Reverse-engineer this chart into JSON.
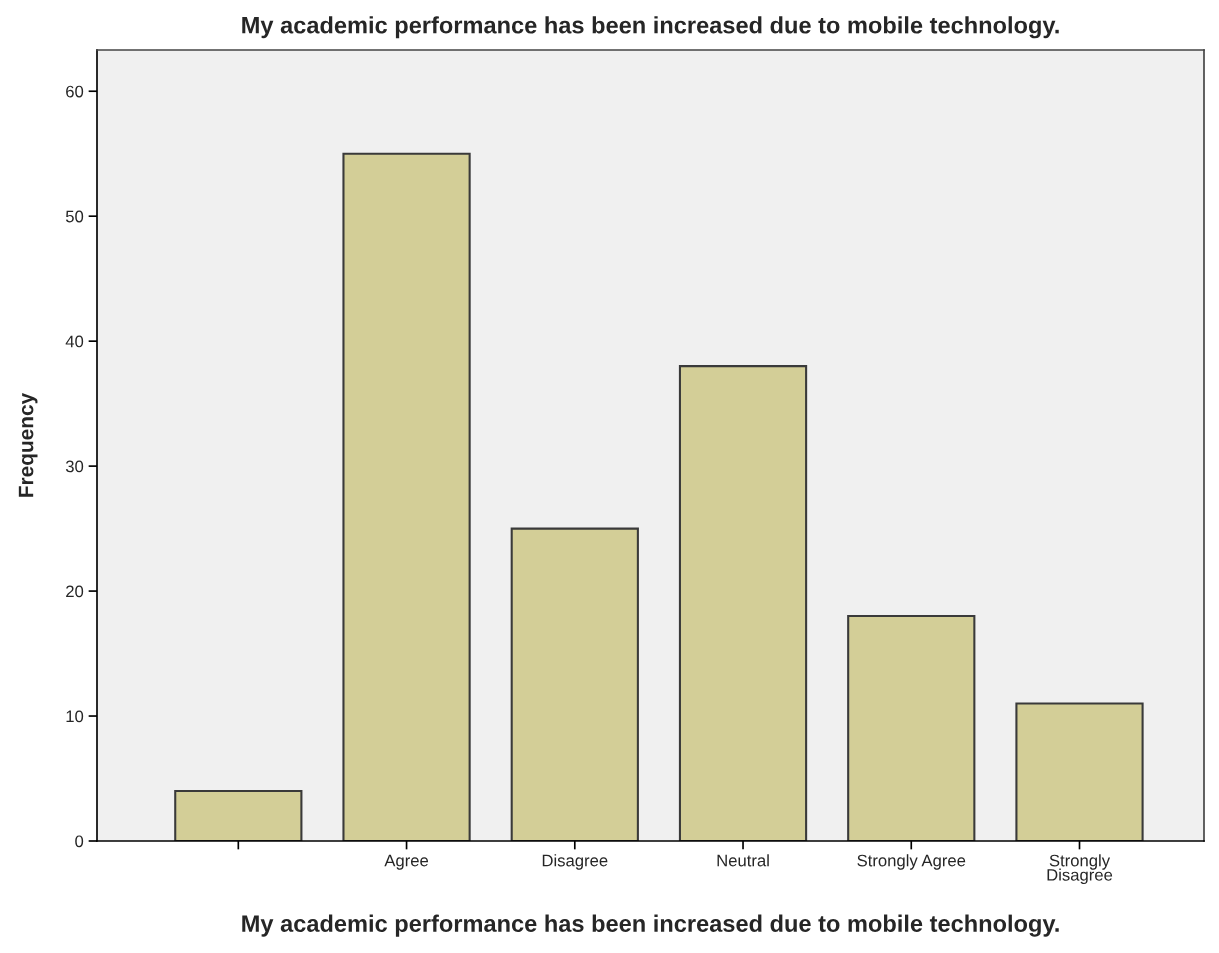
{
  "chart_data": {
    "type": "bar",
    "title": "My academic performance has been increased due to mobile technology.",
    "xlabel": "My academic performance has been increased due to mobile technology.",
    "ylabel": "Frequency",
    "categories": [
      null,
      "Agree",
      "Disagree",
      "Neutral",
      "Strongly Agree",
      "Strongly\nDisagree"
    ],
    "values": [
      4,
      55,
      25,
      38,
      18,
      11
    ],
    "color": "#d3ce97",
    "ylim": [
      0,
      63.3
    ],
    "yticks": [
      0,
      10,
      20,
      30,
      40,
      50,
      60
    ],
    "grid": false,
    "legend": false
  }
}
